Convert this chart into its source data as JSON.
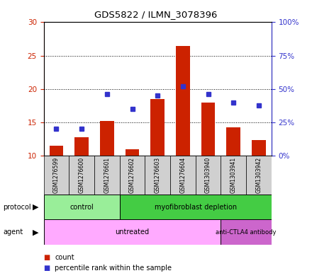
{
  "title": "GDS5822 / ILMN_3078396",
  "samples": [
    "GSM1276599",
    "GSM1276600",
    "GSM1276601",
    "GSM1276602",
    "GSM1276603",
    "GSM1276604",
    "GSM1303940",
    "GSM1303941",
    "GSM1303942"
  ],
  "counts": [
    11.5,
    12.8,
    15.2,
    11.0,
    18.5,
    26.4,
    18.0,
    14.3,
    12.3
  ],
  "percentiles": [
    20.0,
    20.0,
    46.0,
    35.0,
    45.0,
    52.0,
    46.0,
    40.0,
    37.5
  ],
  "ylim_left": [
    10,
    30
  ],
  "ylim_right": [
    0,
    100
  ],
  "yticks_left": [
    10,
    15,
    20,
    25,
    30
  ],
  "yticks_right": [
    0,
    25,
    50,
    75,
    100
  ],
  "bar_color": "#cc2200",
  "dot_color": "#3333cc",
  "bar_bottom": 10,
  "protocol_groups": [
    {
      "label": "control",
      "start": 0,
      "end": 3,
      "color": "#99ee99"
    },
    {
      "label": "myofibroblast depletion",
      "start": 3,
      "end": 9,
      "color": "#44cc44"
    }
  ],
  "agent_groups": [
    {
      "label": "untreated",
      "start": 0,
      "end": 7,
      "color": "#ffaaff"
    },
    {
      "label": "anti-CTLA4 antibody",
      "start": 7,
      "end": 9,
      "color": "#cc66cc"
    }
  ],
  "legend_count_label": "count",
  "legend_pct_label": "percentile rank within the sample",
  "bar_color_hex": "#cc2200",
  "dot_color_hex": "#3333cc"
}
